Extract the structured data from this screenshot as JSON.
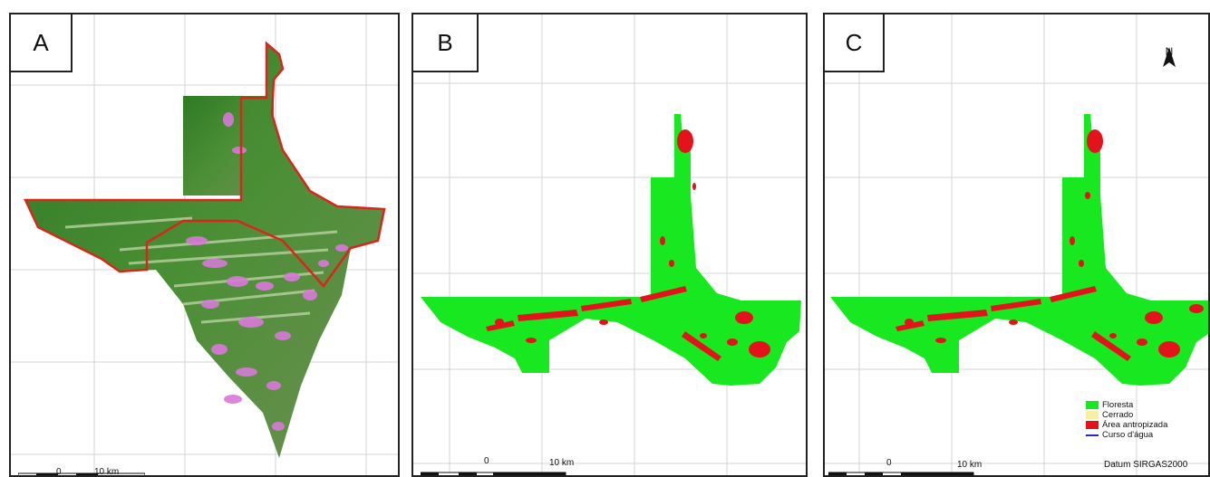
{
  "panels": [
    {
      "label": "A"
    },
    {
      "label": "B"
    },
    {
      "label": "C"
    }
  ],
  "scale_bar": {
    "zero": "0",
    "distance": "10 km"
  },
  "north_arrow": {
    "letter": "N"
  },
  "legend": {
    "items": [
      {
        "label": "Floresta",
        "color": "#17e81f",
        "kind": "patch"
      },
      {
        "label": "Cerrado",
        "color": "#f6f0a2",
        "kind": "patch"
      },
      {
        "label": "Área antropizada",
        "color": "#e4131b",
        "kind": "patch"
      },
      {
        "label": "Curso d'água",
        "color": "#2929c8",
        "kind": "line"
      }
    ],
    "datum": "Datum SIRGAS2000"
  },
  "colors": {
    "boundary": "#d9261c",
    "forest_image": "#3e8a2c",
    "forest_class": "#17e81f",
    "anthropized": "#e4131b",
    "deforestation_image": "#d879d8",
    "grid": "#d4d4d4",
    "frame": "#222222"
  }
}
